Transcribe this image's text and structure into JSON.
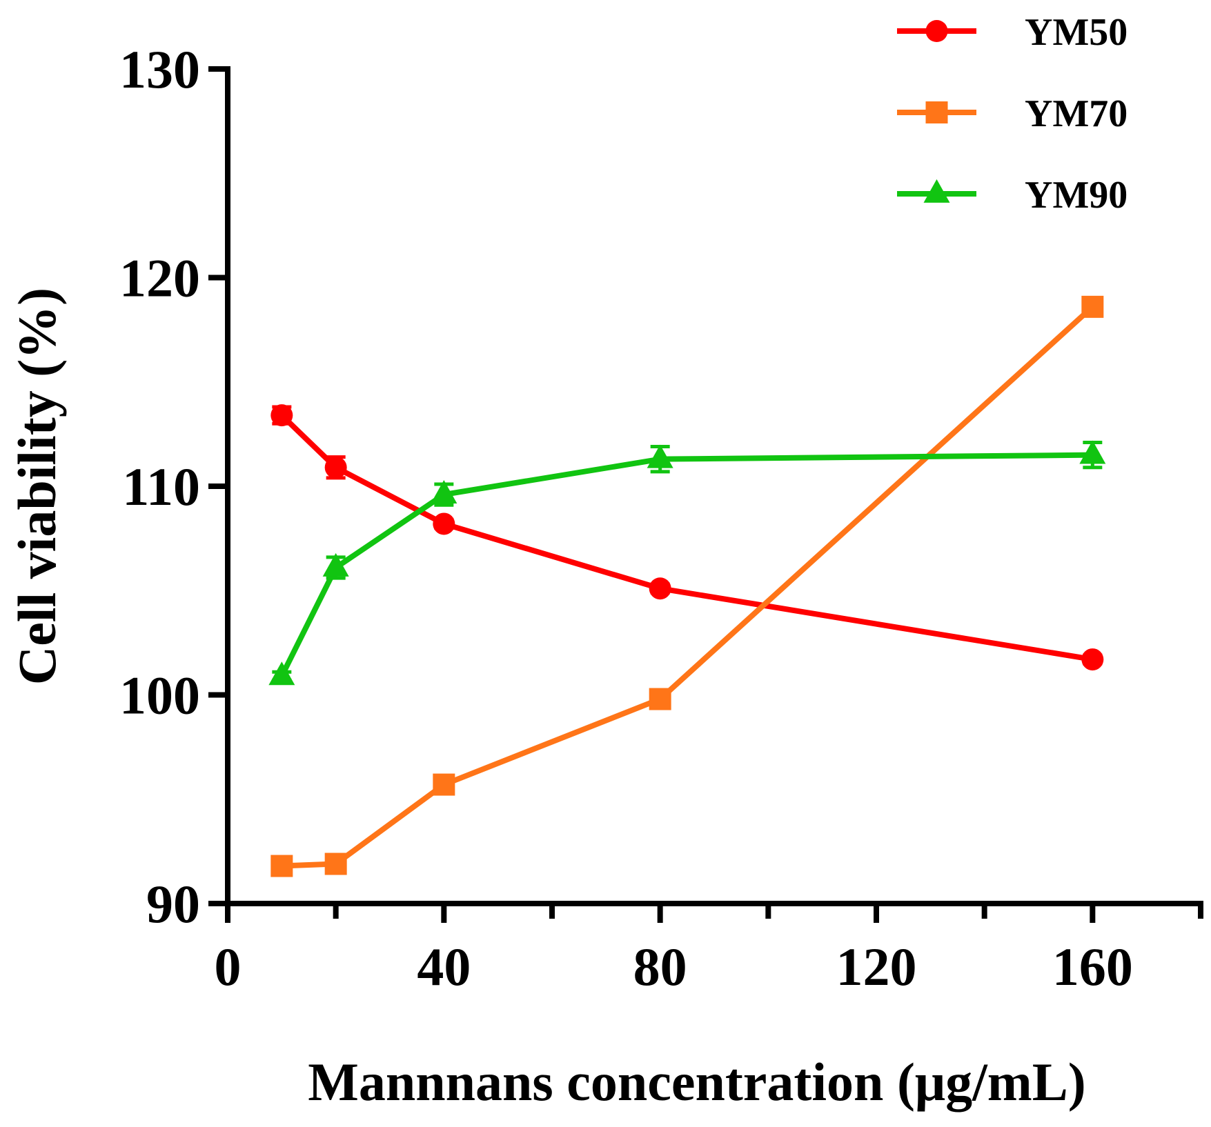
{
  "chart_data": {
    "type": "line",
    "xlabel": "Mannnans concentration (μg/mL)",
    "ylabel": "Cell viability (%)",
    "xlim": [
      0,
      180
    ],
    "ylim": [
      90,
      130
    ],
    "x_ticks": [
      0,
      40,
      80,
      120,
      160
    ],
    "x_minor_ticks": [
      20,
      60,
      100,
      140,
      180
    ],
    "y_ticks": [
      90,
      100,
      110,
      120,
      130
    ],
    "grid": false,
    "legend_position": "top-right",
    "x": [
      10,
      20,
      40,
      80,
      160
    ],
    "series": [
      {
        "name": "YM50",
        "color": "#ff0000",
        "marker": "circle",
        "values": [
          113.4,
          110.9,
          108.2,
          105.1,
          101.7
        ],
        "errors": [
          0.4,
          0.5,
          0.2,
          0.2,
          0.2
        ]
      },
      {
        "name": "YM70",
        "color": "#ff7518",
        "marker": "square",
        "values": [
          91.8,
          91.9,
          95.7,
          99.8,
          118.6
        ],
        "errors": [
          0.2,
          0.2,
          0.3,
          0.2,
          0.4
        ]
      },
      {
        "name": "YM90",
        "color": "#11c411",
        "marker": "triangle",
        "values": [
          100.9,
          106.1,
          109.6,
          111.3,
          111.5
        ],
        "errors": [
          0.2,
          0.5,
          0.5,
          0.6,
          0.6
        ]
      }
    ]
  }
}
